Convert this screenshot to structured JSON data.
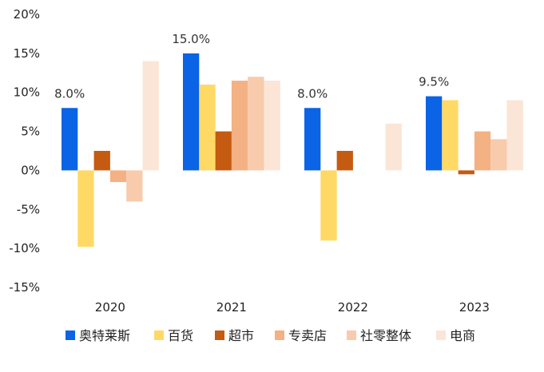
{
  "chart_data": {
    "type": "bar",
    "categories": [
      "2020",
      "2021",
      "2022",
      "2023"
    ],
    "series": [
      {
        "name": "奥特莱斯",
        "color": "#0b63e5",
        "values": [
          8.0,
          15.0,
          8.0,
          9.5
        ]
      },
      {
        "name": "百货",
        "color": "#ffd966",
        "values": [
          -9.8,
          11.0,
          -9.0,
          9.0
        ]
      },
      {
        "name": "超市",
        "color": "#c55a11",
        "values": [
          2.5,
          5.0,
          2.5,
          -0.5
        ]
      },
      {
        "name": "专卖店",
        "color": "#f4b183",
        "values": [
          -1.5,
          11.5,
          null,
          5.0
        ]
      },
      {
        "name": "社零整体",
        "color": "#f8cbad",
        "values": [
          -4.0,
          12.0,
          null,
          4.0
        ]
      },
      {
        "name": "电商",
        "color": "#fbe5d6",
        "values": [
          14.0,
          11.5,
          6.0,
          9.0
        ]
      }
    ],
    "data_labels": [
      {
        "series": "奥特莱斯",
        "category": "2020",
        "text": "8.0%"
      },
      {
        "series": "奥特莱斯",
        "category": "2021",
        "text": "15.0%"
      },
      {
        "series": "奥特莱斯",
        "category": "2022",
        "text": "8.0%"
      },
      {
        "series": "奥特莱斯",
        "category": "2023",
        "text": "9.5%"
      }
    ],
    "y_ticks": [
      "20%",
      "15%",
      "10%",
      "5%",
      "0%",
      "-5%",
      "-10%",
      "-15%"
    ],
    "ylim": [
      -15,
      20
    ],
    "y_step": 5,
    "legend_position": "bottom",
    "grid": false
  }
}
